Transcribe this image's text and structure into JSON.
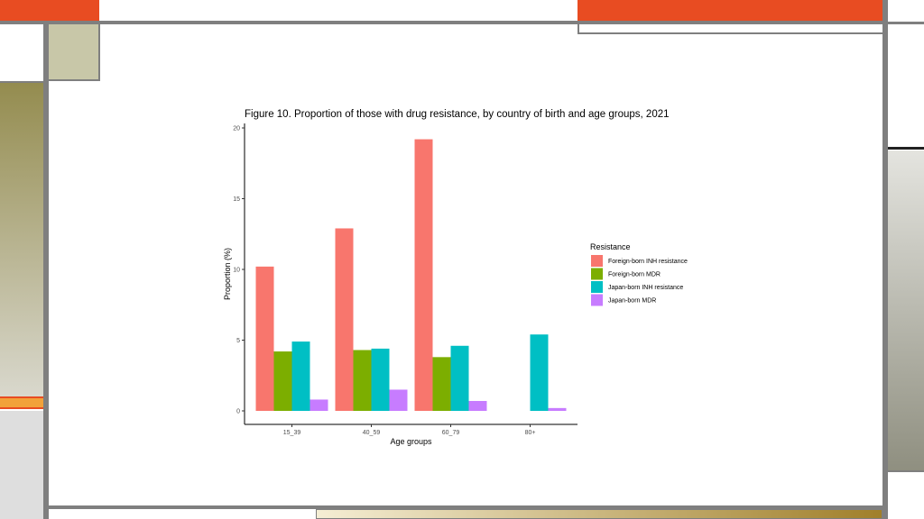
{
  "chart_data": {
    "type": "bar",
    "title": "Figure 10. Proportion of those with drug resistance, by country of birth and age groups, 2021",
    "xlabel": "Age groups",
    "ylabel": "Proportion (%)",
    "ylim": [
      0,
      20
    ],
    "yticks": [
      "0",
      "5",
      "10",
      "15",
      "20"
    ],
    "categories": [
      "15_39",
      "40_59",
      "60_79",
      "80+"
    ],
    "legend_title": "Resistance",
    "legend_position": "right",
    "grid": false,
    "series": [
      {
        "name": "Foreign-born INH resistance",
        "color": "#f8766d",
        "values": [
          10.2,
          12.9,
          19.2,
          null
        ]
      },
      {
        "name": "Foreign-born MDR",
        "color": "#7cae00",
        "values": [
          4.2,
          4.3,
          3.8,
          null
        ]
      },
      {
        "name": "Japan-born INH resistance",
        "color": "#00bfc4",
        "values": [
          4.9,
          4.4,
          4.6,
          5.4
        ]
      },
      {
        "name": "Japan-born MDR",
        "color": "#c77cff",
        "values": [
          0.8,
          1.5,
          0.7,
          0.2
        ]
      }
    ]
  }
}
